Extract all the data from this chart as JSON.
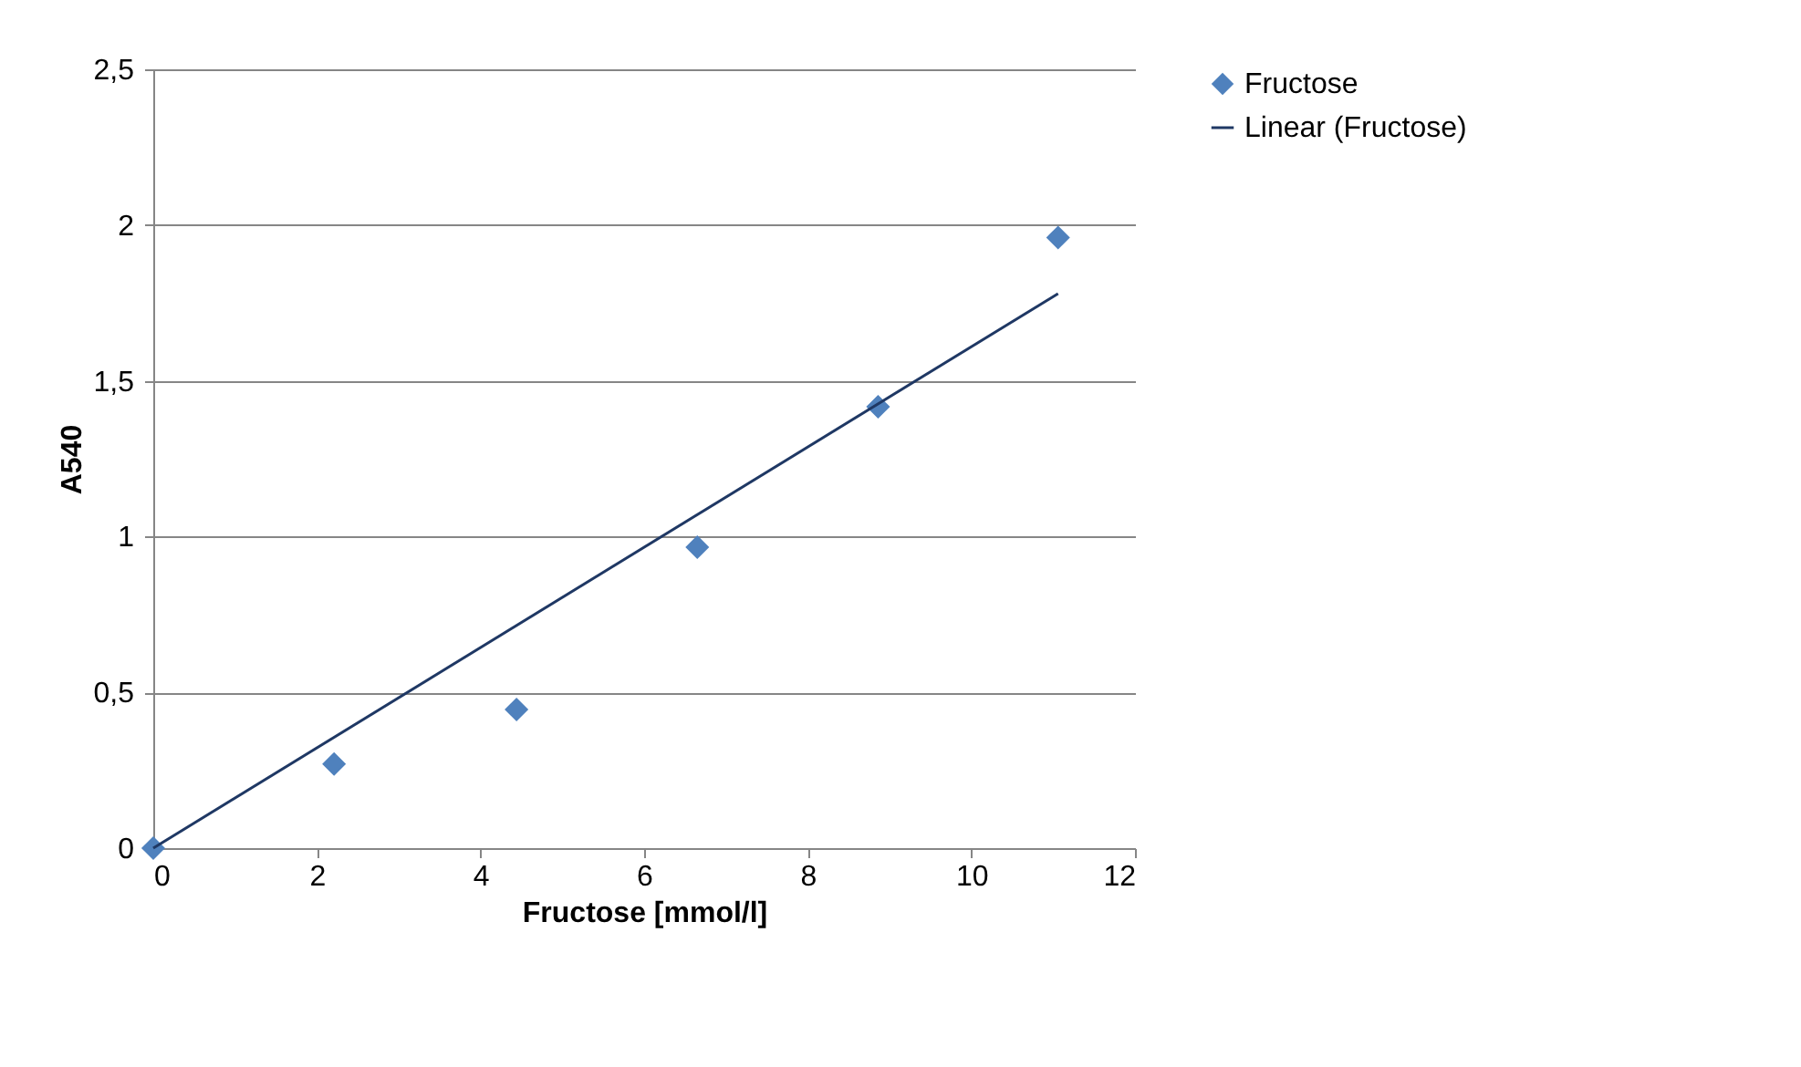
{
  "chart_data": {
    "type": "scatter",
    "xlabel": "Fructose [mmol/l]",
    "ylabel": "A540",
    "xlim": [
      0,
      12
    ],
    "xticks": [
      0,
      2,
      4,
      6,
      8,
      10,
      12
    ],
    "ylim": [
      0,
      2.5
    ],
    "yticks": [
      0,
      {
        "value": 0.5,
        "label": "0,5"
      },
      1,
      {
        "value": 1.5,
        "label": "1,5"
      },
      2,
      {
        "value": 2.5,
        "label": "2,5"
      }
    ],
    "grid": "y",
    "legend": "right",
    "series": [
      {
        "name": "Fructose",
        "marker": "diamond",
        "color": "#4f81bd",
        "x": [
          0,
          2.21,
          4.44,
          6.65,
          8.86,
          11.06
        ],
        "values": [
          0,
          0.27,
          0.445,
          0.966,
          1.417,
          1.96
        ]
      },
      {
        "name": "Linear (Fructose)",
        "type": "line",
        "marker": "none",
        "line_style": "solid",
        "color": "#1f3864",
        "x": [
          0,
          11.06
        ],
        "values": [
          0,
          1.78
        ]
      }
    ]
  }
}
